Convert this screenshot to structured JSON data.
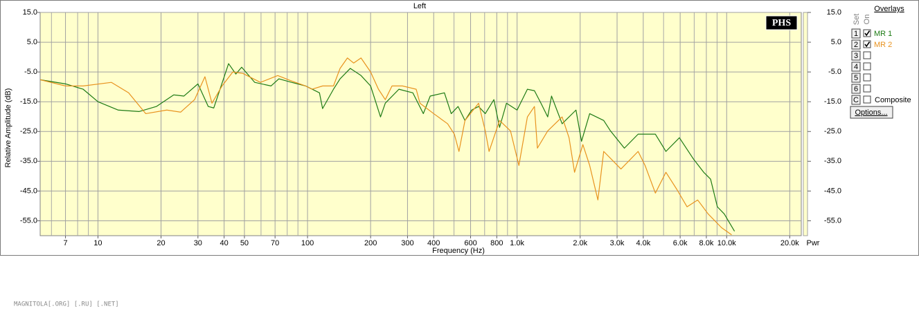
{
  "chart_data": {
    "type": "line",
    "title": "Left",
    "x_label": "Frequency (Hz)",
    "y_label": "Relative Amplitude (dB)",
    "y2_label": "Pwr",
    "badge": "PHS",
    "x_log": true,
    "grid": true,
    "background": "#ffffcc",
    "xlim": [
      5.3,
      22700
    ],
    "ylim": [
      -60,
      15
    ],
    "xticks": [
      7,
      10,
      20,
      30,
      40,
      50,
      70,
      100,
      200,
      300,
      400,
      600,
      800,
      {
        "value": 1000,
        "label": "1.0k"
      },
      {
        "value": 2000,
        "label": "2.0k"
      },
      {
        "value": 3000,
        "label": "3.0k"
      },
      {
        "value": 4000,
        "label": "4.0k"
      },
      {
        "value": 6000,
        "label": "6.0k"
      },
      {
        "value": 8000,
        "label": "8.0k"
      },
      {
        "value": 10000,
        "label": "10.0k"
      },
      {
        "value": 20000,
        "label": "20.0k"
      }
    ],
    "x_minor_grid": [
      6,
      8,
      9,
      60,
      80,
      90,
      500,
      700,
      900,
      5000,
      7000,
      9000
    ],
    "yticks": [
      {
        "value": 15,
        "label": "15.0"
      },
      {
        "value": 5,
        "label": "5.0"
      },
      {
        "value": -5,
        "label": "-5.0"
      },
      {
        "value": -15,
        "label": "-15.0"
      },
      {
        "value": -25,
        "label": "-25.0"
      },
      {
        "value": -35,
        "label": "-35.0"
      },
      {
        "value": -45,
        "label": "-45.0"
      },
      {
        "value": -55,
        "label": "-55.0"
      }
    ],
    "series": [
      {
        "name": "MR 1",
        "color": "#1d7a14",
        "x": [
          5.3,
          7,
          8.5,
          10,
          12.5,
          15.7,
          19,
          23,
          25.7,
          30,
          33.6,
          35.7,
          42,
          45.5,
          48.5,
          56,
          67,
          73,
          84,
          98,
          114,
          118,
          133,
          143,
          160,
          180,
          200,
          223,
          235,
          273,
          318,
          357,
          385,
          450,
          485,
          523,
          564,
          607,
          655,
          705,
          775,
          825,
          890,
          1000,
          1120,
          1210,
          1300,
          1400,
          1460,
          1640,
          1910,
          2030,
          2220,
          2590,
          2790,
          3250,
          3780,
          4570,
          5130,
          5950,
          6920,
          7770,
          8380,
          9030,
          9740,
          10900
        ],
        "values": [
          -7.6,
          -9.0,
          -10.8,
          -15.0,
          -17.8,
          -18.3,
          -16.6,
          -12.7,
          -13.1,
          -9.0,
          -16.6,
          -17.1,
          -2.2,
          -5.7,
          -3.4,
          -8.5,
          -9.7,
          -7.3,
          -8.5,
          -9.7,
          -12.0,
          -17.3,
          -10.8,
          -7.3,
          -3.8,
          -6.2,
          -9.7,
          -20.1,
          -15.5,
          -10.8,
          -12.0,
          -19.0,
          -13.1,
          -12.0,
          -19.0,
          -16.6,
          -21.3,
          -17.8,
          -16.6,
          -19.0,
          -14.3,
          -23.6,
          -15.5,
          -17.8,
          -10.8,
          -11.3,
          -15.5,
          -20.1,
          -13.1,
          -22.4,
          -17.8,
          -28.3,
          -19.0,
          -21.3,
          -24.8,
          -30.6,
          -25.9,
          -25.9,
          -31.7,
          -27.1,
          -34.1,
          -38.7,
          -41.0,
          -50.3,
          -52.7,
          -58.5
        ]
      },
      {
        "name": "MR 2",
        "color": "#e8921e",
        "x": [
          5.3,
          7,
          8.5,
          11.6,
          14,
          16.9,
          21.3,
          24.8,
          28.9,
          32.4,
          35,
          39.1,
          44,
          49.2,
          59.6,
          72.1,
          83.7,
          97.8,
          105,
          118,
          133,
          143,
          155,
          166,
          180,
          200,
          218,
          235,
          253,
          284,
          330,
          344,
          400,
          466,
          502,
          528,
          564,
          655,
          705,
          735,
          825,
          930,
          1020,
          1120,
          1210,
          1250,
          1400,
          1640,
          1770,
          1880,
          2060,
          2220,
          2430,
          2590,
          3130,
          3780,
          4080,
          4570,
          5130,
          5790,
          6470,
          7270,
          8160,
          9450,
          10560
        ],
        "values": [
          -7.6,
          -9.7,
          -9.7,
          -8.5,
          -12.0,
          -19.0,
          -17.8,
          -18.5,
          -14.3,
          -6.6,
          -15.5,
          -9.7,
          -5.0,
          -5.5,
          -8.5,
          -6.2,
          -8.0,
          -9.7,
          -10.8,
          -9.7,
          -9.7,
          -3.8,
          -0.3,
          -2.0,
          -0.3,
          -5.0,
          -10.8,
          -14.3,
          -9.7,
          -9.7,
          -10.8,
          -15.5,
          -19.0,
          -22.4,
          -25.9,
          -31.7,
          -21.3,
          -15.5,
          -24.8,
          -31.7,
          -21.3,
          -24.8,
          -36.4,
          -20.1,
          -16.6,
          -30.6,
          -24.8,
          -20.1,
          -27.1,
          -38.7,
          -29.4,
          -36.4,
          -48.0,
          -31.7,
          -37.6,
          -31.7,
          -36.4,
          -45.7,
          -38.7,
          -44.5,
          -50.3,
          -48.0,
          -52.7,
          -57.3,
          -59.7
        ]
      }
    ]
  },
  "overlays": {
    "title": "Overlays",
    "set_header": "Set",
    "on_header": "On",
    "rows": [
      {
        "set": "1",
        "checked": true
      },
      {
        "set": "2",
        "checked": true
      },
      {
        "set": "3",
        "checked": false
      },
      {
        "set": "4",
        "checked": false
      },
      {
        "set": "5",
        "checked": false
      },
      {
        "set": "6",
        "checked": false
      }
    ],
    "composite": {
      "set": "C",
      "label": "Composite",
      "checked": false
    },
    "options": "Options..."
  },
  "watermark": "MAGNITOLA[.ORG] [.RU] [.NET]"
}
